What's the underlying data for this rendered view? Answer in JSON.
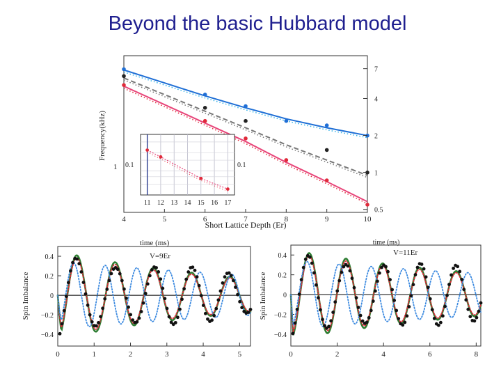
{
  "slide": {
    "title": "Beyond the basic Hubbard model"
  },
  "colors": {
    "blue": "#1f6fd6",
    "cyan": "#2fb0e8",
    "black": "#222222",
    "gray": "#777777",
    "red": "#e02a3a",
    "pink": "#e8457a",
    "green": "#2e7d32",
    "dots_blue": "#3c8ae0"
  },
  "chart_data": [
    {
      "type": "line",
      "xlabel": "Short Lattice Depth (Er)",
      "ylabel": "Frequency(kHz)",
      "x_ticks": [
        "4",
        "5",
        "6",
        "7",
        "8",
        "9",
        "10"
      ],
      "y_left_ticks": [
        "1"
      ],
      "y_right_ticks": [
        "7",
        "4",
        "2",
        "1",
        "0.5"
      ],
      "xlim": [
        4,
        10
      ],
      "ylim": [
        0.45,
        8.5
      ],
      "log_y": true,
      "series": [
        {
          "color": "blue",
          "style": "solid",
          "x": [
            4,
            5,
            6,
            7,
            8,
            9,
            10
          ],
          "y": [
            6.5,
            5.1,
            4.0,
            3.2,
            2.6,
            2.2,
            1.9
          ]
        },
        {
          "color": "gray",
          "style": "dashed",
          "x": [
            4,
            5,
            6,
            7,
            8,
            9,
            10
          ],
          "y": [
            5.6,
            4.1,
            3.0,
            2.2,
            1.6,
            1.2,
            0.9
          ]
        },
        {
          "color": "pink",
          "style": "solid",
          "x": [
            4,
            5,
            6,
            7,
            8,
            9,
            10
          ],
          "y": [
            4.8,
            3.4,
            2.4,
            1.7,
            1.15,
            0.8,
            0.55
          ]
        }
      ],
      "points": [
        {
          "color": "blue",
          "x": [
            4,
            6,
            7,
            8,
            9,
            10
          ],
          "y": [
            6.6,
            4.1,
            3.3,
            2.5,
            2.3,
            1.9
          ]
        },
        {
          "color": "black",
          "x": [
            4,
            6,
            7,
            9,
            10
          ],
          "y": [
            5.8,
            3.2,
            2.5,
            1.45,
            0.95
          ]
        },
        {
          "color": "red",
          "x": [
            4,
            6,
            7,
            8,
            9,
            10
          ],
          "y": [
            4.9,
            2.5,
            1.8,
            1.2,
            0.82,
            0.52
          ]
        }
      ],
      "inset": {
        "x_ticks": [
          "11",
          "12",
          "13",
          "14",
          "15",
          "16",
          "17"
        ],
        "y_left_label": "0.1",
        "y_right_label": "0.1",
        "xlim": [
          10.5,
          17.5
        ],
        "ylim": [
          0.04,
          0.4
        ],
        "points": {
          "x": [
            11,
            12,
            15,
            17
          ],
          "y": [
            0.22,
            0.17,
            0.075,
            0.05
          ]
        }
      }
    },
    {
      "type": "line",
      "title": "time (ms)",
      "annotation": "V=9Er",
      "ylabel": "Spin Imbalance",
      "x_ticks": [
        "0",
        "1",
        "2",
        "3",
        "4",
        "5"
      ],
      "y_ticks": [
        "0.4",
        "0.2",
        "0",
        "-0.2",
        "-0.4"
      ],
      "xlim": [
        0,
        5.3
      ],
      "ylim": [
        -0.52,
        0.5
      ],
      "series": [
        {
          "color": "green",
          "style": "solid",
          "freq": 0.95,
          "amp": 0.45,
          "decay": 0.18
        },
        {
          "color": "red",
          "style": "dotted",
          "freq": 0.95,
          "amp": 0.42,
          "decay": 0.18
        },
        {
          "color": "dots_blue",
          "style": "dotted",
          "freq": 1.15,
          "amp": 0.35,
          "decay": 0.1
        }
      ]
    },
    {
      "type": "line",
      "title": "time (ms)",
      "annotation": "V=11Er",
      "ylabel": "Spin Imbalance",
      "x_ticks": [
        "0",
        "2",
        "4",
        "6",
        "8"
      ],
      "y_ticks": [
        "0.4",
        "0.2",
        "0",
        "-0.2",
        "-0.4"
      ],
      "xlim": [
        0,
        8.2
      ],
      "ylim": [
        -0.52,
        0.5
      ],
      "series": [
        {
          "color": "green",
          "style": "solid",
          "freq": 0.63,
          "amp": 0.45,
          "decay": 0.09
        },
        {
          "color": "red",
          "style": "dotted",
          "freq": 0.63,
          "amp": 0.42,
          "decay": 0.09
        },
        {
          "color": "dots_blue",
          "style": "dotted",
          "freq": 0.72,
          "amp": 0.35,
          "decay": 0.06
        }
      ]
    }
  ]
}
